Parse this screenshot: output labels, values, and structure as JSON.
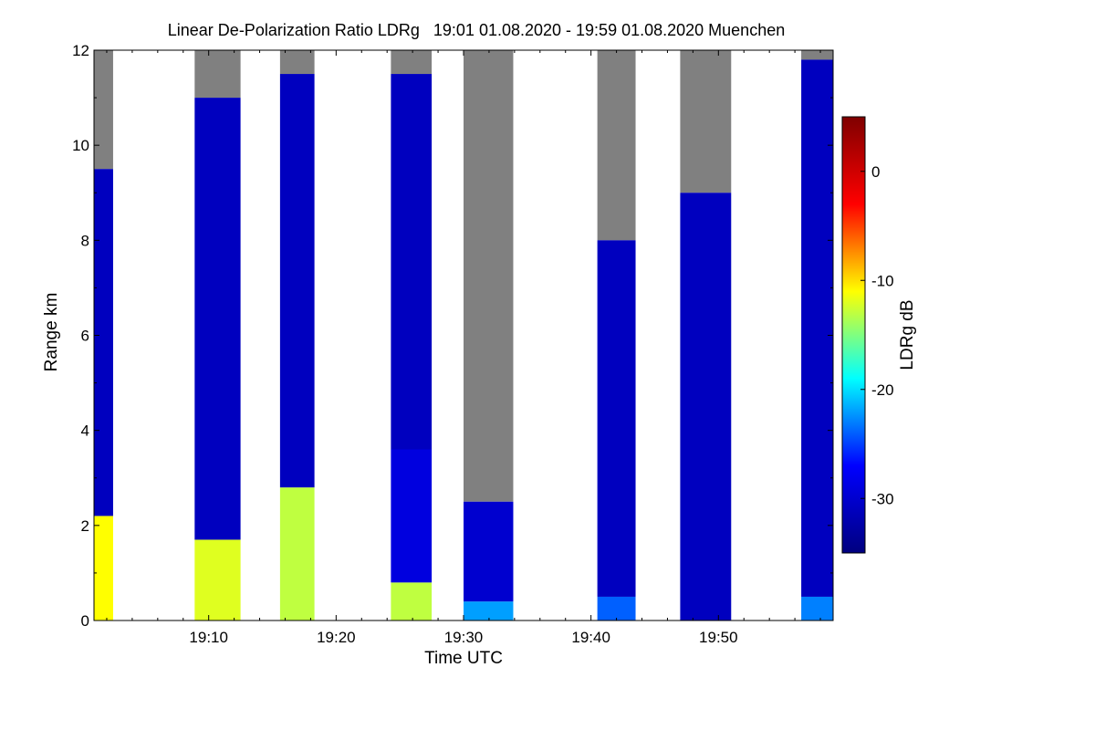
{
  "chart_data": {
    "type": "heatmap",
    "title": "Linear De-Polarization Ratio LDRg   19:01 01.08.2020 - 19:59 01.08.2020 Muenchen",
    "xlabel": "Time UTC",
    "ylabel": "Range km",
    "colorbar_label": "LDRg dB",
    "xlim_minutes_after_19h": [
      1,
      59
    ],
    "ylim": [
      0,
      12
    ],
    "x_ticks": [
      {
        "minute": 10,
        "label": "19:10"
      },
      {
        "minute": 20,
        "label": "19:20"
      },
      {
        "minute": 30,
        "label": "19:30"
      },
      {
        "minute": 40,
        "label": "19:40"
      },
      {
        "minute": 50,
        "label": "19:50"
      }
    ],
    "y_ticks": [
      {
        "value": 0,
        "label": "0"
      },
      {
        "value": 2,
        "label": "2"
      },
      {
        "value": 4,
        "label": "4"
      },
      {
        "value": 6,
        "label": "6"
      },
      {
        "value": 8,
        "label": "8"
      },
      {
        "value": 10,
        "label": "10"
      },
      {
        "value": 12,
        "label": "12"
      }
    ],
    "colorbar": {
      "range": [
        -35,
        5
      ],
      "ticks": [
        {
          "value": 0,
          "label": "0"
        },
        {
          "value": -10,
          "label": "-10"
        },
        {
          "value": -20,
          "label": "-20"
        },
        {
          "value": -30,
          "label": "-30"
        }
      ],
      "colormap": [
        "#00007f",
        "#0000ff",
        "#00ffff",
        "#ffff00",
        "#ff0000",
        "#7f0000"
      ]
    },
    "no_signal_color": "#808080",
    "measurement_periods": [
      {
        "start_min": 1.0,
        "end_min": 2.5,
        "top_km": 12.0,
        "gray_above_km": 9.5,
        "layers": [
          {
            "from_km": 0,
            "to_km": 2.2,
            "ldr_db": -11
          },
          {
            "from_km": 2.2,
            "to_km": 9.5,
            "ldr_db": -31
          }
        ]
      },
      {
        "start_min": 8.9,
        "end_min": 12.5,
        "top_km": 12.0,
        "gray_above_km": 11.0,
        "layers": [
          {
            "from_km": 0,
            "to_km": 1.7,
            "ldr_db": -12
          },
          {
            "from_km": 1.7,
            "to_km": 11.0,
            "ldr_db": -31
          }
        ]
      },
      {
        "start_min": 15.6,
        "end_min": 18.3,
        "top_km": 12.0,
        "gray_above_km": 11.5,
        "layers": [
          {
            "from_km": 0,
            "to_km": 2.8,
            "ldr_db": -13
          },
          {
            "from_km": 2.8,
            "to_km": 11.5,
            "ldr_db": -31
          }
        ]
      },
      {
        "start_min": 24.3,
        "end_min": 27.5,
        "top_km": 12.0,
        "gray_above_km": 11.5,
        "layers": [
          {
            "from_km": 0,
            "to_km": 0.8,
            "ldr_db": -13
          },
          {
            "from_km": 0.8,
            "to_km": 3.6,
            "ldr_db": -29
          },
          {
            "from_km": 3.6,
            "to_km": 11.5,
            "ldr_db": -31
          }
        ]
      },
      {
        "start_min": 30.0,
        "end_min": 33.9,
        "top_km": 12.0,
        "gray_above_km": 2.5,
        "layers": [
          {
            "from_km": 0,
            "to_km": 0.4,
            "ldr_db": -22
          },
          {
            "from_km": 0.4,
            "to_km": 2.5,
            "ldr_db": -30
          }
        ]
      },
      {
        "start_min": 40.5,
        "end_min": 43.5,
        "top_km": 12.0,
        "gray_above_km": 8.0,
        "layers": [
          {
            "from_km": 0,
            "to_km": 0.5,
            "ldr_db": -24
          },
          {
            "from_km": 0.5,
            "to_km": 8.0,
            "ldr_db": -31
          }
        ]
      },
      {
        "start_min": 47.0,
        "end_min": 51.0,
        "top_km": 12.0,
        "gray_above_km": 9.0,
        "layers": [
          {
            "from_km": 0,
            "to_km": 9.0,
            "ldr_db": -31
          }
        ]
      },
      {
        "start_min": 56.5,
        "end_min": 59.0,
        "top_km": 12.0,
        "gray_above_km": 11.8,
        "layers": [
          {
            "from_km": 0,
            "to_km": 0.5,
            "ldr_db": -23
          },
          {
            "from_km": 0.5,
            "to_km": 11.8,
            "ldr_db": -31
          }
        ]
      }
    ]
  }
}
